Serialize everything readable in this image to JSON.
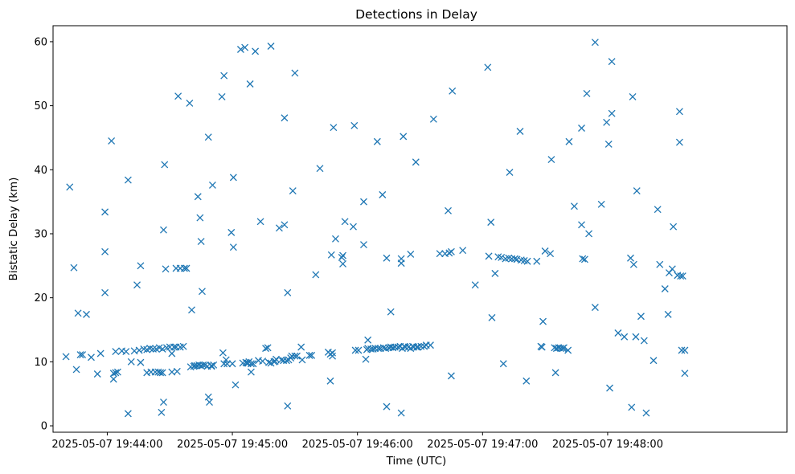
{
  "chart_data": {
    "type": "scatter",
    "title": "Detections in Delay",
    "xlabel": "Time (UTC)",
    "ylabel": "Bistatic Delay (km)",
    "marker": "x",
    "color": "#1f77b4",
    "x_unit": "seconds after 2025-05-07 19:43:00",
    "xlim": [
      34,
      386
    ],
    "ylim": [
      -1,
      62.5
    ],
    "grid": false,
    "x_ticks": [
      {
        "value": 60,
        "label": "2025-05-07 19:44:00"
      },
      {
        "value": 120,
        "label": "2025-05-07 19:45:00"
      },
      {
        "value": 180,
        "label": "2025-05-07 19:46:00"
      },
      {
        "value": 240,
        "label": "2025-05-07 19:47:00"
      },
      {
        "value": 300,
        "label": "2025-05-07 19:48:00"
      }
    ],
    "y_ticks": [
      {
        "value": 0,
        "label": "0"
      },
      {
        "value": 10,
        "label": "10"
      },
      {
        "value": 20,
        "label": "20"
      },
      {
        "value": 30,
        "label": "30"
      },
      {
        "value": 40,
        "label": "40"
      },
      {
        "value": 50,
        "label": "50"
      },
      {
        "value": 60,
        "label": "60"
      }
    ],
    "points": [
      [
        40.2,
        10.8
      ],
      [
        42.0,
        37.3
      ],
      [
        44.0,
        24.7
      ],
      [
        45.2,
        8.8
      ],
      [
        46.0,
        17.6
      ],
      [
        47.1,
        11.1
      ],
      [
        48.1,
        11.1
      ],
      [
        50.0,
        17.4
      ],
      [
        52.3,
        10.7
      ],
      [
        55.3,
        8.1
      ],
      [
        56.8,
        11.3
      ],
      [
        58.9,
        33.4
      ],
      [
        58.9,
        27.2
      ],
      [
        58.9,
        20.8
      ],
      [
        62.0,
        44.5
      ],
      [
        63.0,
        7.3
      ],
      [
        63.0,
        8.2
      ],
      [
        64.0,
        11.6
      ],
      [
        64.0,
        8.3
      ],
      [
        65.0,
        8.4
      ],
      [
        67.0,
        11.7
      ],
      [
        69.0,
        11.6
      ],
      [
        70.0,
        1.9
      ],
      [
        70.0,
        38.4
      ],
      [
        71.5,
        10.0
      ],
      [
        73.0,
        11.7
      ],
      [
        74.3,
        22.0
      ],
      [
        75.3,
        11.8
      ],
      [
        76.0,
        25.0
      ],
      [
        76.0,
        9.9
      ],
      [
        77.5,
        12.0
      ],
      [
        79.0,
        11.9
      ],
      [
        79.0,
        8.3
      ],
      [
        80.5,
        12.1
      ],
      [
        81.0,
        8.4
      ],
      [
        82.0,
        12.0
      ],
      [
        83.0,
        8.4
      ],
      [
        83.5,
        12.0
      ],
      [
        84.5,
        8.4
      ],
      [
        85.0,
        12.2
      ],
      [
        85.5,
        8.3
      ],
      [
        86.0,
        2.1
      ],
      [
        86.5,
        12.0
      ],
      [
        86.5,
        8.3
      ],
      [
        87.0,
        3.7
      ],
      [
        87.0,
        30.6
      ],
      [
        87.5,
        40.8
      ],
      [
        88.0,
        24.5
      ],
      [
        88.5,
        12.2
      ],
      [
        90.0,
        12.3
      ],
      [
        91.0,
        11.3
      ],
      [
        91.0,
        8.4
      ],
      [
        92.0,
        12.3
      ],
      [
        93.0,
        24.6
      ],
      [
        93.0,
        12.3
      ],
      [
        93.5,
        8.5
      ],
      [
        94.0,
        51.5
      ],
      [
        95.0,
        12.3
      ],
      [
        95.0,
        24.6
      ],
      [
        96.5,
        12.4
      ],
      [
        97.0,
        24.6
      ],
      [
        98.0,
        24.6
      ],
      [
        99.5,
        50.4
      ],
      [
        100.0,
        9.2
      ],
      [
        100.5,
        18.1
      ],
      [
        101.5,
        9.3
      ],
      [
        102.0,
        9.4
      ],
      [
        103.0,
        9.4
      ],
      [
        103.5,
        35.8
      ],
      [
        104.0,
        9.5
      ],
      [
        104.5,
        32.5
      ],
      [
        105.0,
        28.8
      ],
      [
        105.0,
        9.4
      ],
      [
        105.5,
        21.0
      ],
      [
        106.0,
        9.5
      ],
      [
        107.0,
        9.5
      ],
      [
        108.0,
        9.3
      ],
      [
        108.5,
        45.1
      ],
      [
        108.5,
        4.5
      ],
      [
        109.0,
        3.7
      ],
      [
        110.0,
        9.3
      ],
      [
        110.0,
        9.4
      ],
      [
        110.5,
        37.6
      ],
      [
        111.0,
        9.5
      ],
      [
        115.0,
        51.4
      ],
      [
        115.5,
        11.4
      ],
      [
        116.0,
        54.7
      ],
      [
        116.0,
        9.7
      ],
      [
        117.0,
        10.3
      ],
      [
        117.5,
        9.7
      ],
      [
        119.5,
        30.2
      ],
      [
        120.0,
        9.7
      ],
      [
        120.5,
        27.9
      ],
      [
        120.5,
        38.8
      ],
      [
        121.5,
        6.4
      ],
      [
        124.0,
        58.8
      ],
      [
        125.0,
        9.8
      ],
      [
        126.0,
        59.1
      ],
      [
        126.5,
        9.9
      ],
      [
        127.0,
        9.8
      ],
      [
        127.5,
        9.8
      ],
      [
        128.0,
        10.0
      ],
      [
        128.5,
        53.4
      ],
      [
        129.0,
        9.7
      ],
      [
        129.0,
        8.4
      ],
      [
        130.0,
        9.7
      ],
      [
        131.0,
        58.5
      ],
      [
        132.5,
        10.2
      ],
      [
        133.5,
        31.9
      ],
      [
        134.5,
        10.1
      ],
      [
        136.0,
        12.1
      ],
      [
        137.0,
        12.2
      ],
      [
        137.5,
        9.9
      ],
      [
        138.5,
        59.3
      ],
      [
        138.5,
        9.8
      ],
      [
        140.0,
        10.0
      ],
      [
        140.5,
        10.1
      ],
      [
        141.0,
        10.4
      ],
      [
        142.5,
        30.9
      ],
      [
        143.5,
        10.3
      ],
      [
        144.5,
        10.2
      ],
      [
        145.0,
        48.1
      ],
      [
        145.0,
        31.4
      ],
      [
        146.0,
        10.2
      ],
      [
        146.5,
        20.8
      ],
      [
        146.5,
        3.1
      ],
      [
        147.0,
        10.3
      ],
      [
        148.0,
        10.6
      ],
      [
        148.5,
        10.9
      ],
      [
        149.0,
        36.7
      ],
      [
        150.0,
        10.9
      ],
      [
        150.0,
        55.1
      ],
      [
        151.0,
        10.9
      ],
      [
        153.0,
        12.3
      ],
      [
        153.5,
        10.3
      ],
      [
        157.0,
        11.0
      ],
      [
        158.0,
        11.0
      ],
      [
        160.0,
        23.6
      ],
      [
        162.0,
        40.2
      ],
      [
        166.0,
        11.5
      ],
      [
        167.0,
        11.2
      ],
      [
        167.0,
        7.0
      ],
      [
        167.5,
        26.7
      ],
      [
        168.0,
        11.4
      ],
      [
        168.0,
        10.9
      ],
      [
        168.5,
        46.6
      ],
      [
        169.5,
        29.2
      ],
      [
        172.5,
        26.3
      ],
      [
        173.0,
        25.3
      ],
      [
        173.0,
        26.6
      ],
      [
        174.0,
        31.9
      ],
      [
        178.0,
        31.1
      ],
      [
        178.5,
        46.9
      ],
      [
        179.0,
        11.8
      ],
      [
        180.5,
        11.8
      ],
      [
        183.0,
        35.0
      ],
      [
        183.0,
        28.3
      ],
      [
        184.0,
        10.4
      ],
      [
        184.5,
        11.9
      ],
      [
        185.0,
        13.4
      ],
      [
        185.0,
        12.1
      ],
      [
        186.5,
        12.0
      ],
      [
        187.5,
        12.0
      ],
      [
        188.5,
        12.1
      ],
      [
        189.5,
        44.4
      ],
      [
        190.0,
        12.1
      ],
      [
        191.0,
        12.1
      ],
      [
        192.0,
        36.1
      ],
      [
        192.5,
        12.2
      ],
      [
        193.5,
        12.1
      ],
      [
        194.0,
        26.2
      ],
      [
        194.0,
        3.0
      ],
      [
        195.0,
        12.2
      ],
      [
        196.0,
        17.8
      ],
      [
        196.0,
        12.3
      ],
      [
        197.0,
        12.2
      ],
      [
        198.0,
        12.3
      ],
      [
        199.5,
        12.3
      ],
      [
        200.5,
        12.4
      ],
      [
        201.0,
        26.1
      ],
      [
        201.0,
        25.4
      ],
      [
        201.0,
        2.0
      ],
      [
        201.5,
        12.1
      ],
      [
        202.0,
        45.2
      ],
      [
        202.5,
        12.4
      ],
      [
        203.0,
        12.3
      ],
      [
        204.5,
        12.3
      ],
      [
        205.5,
        26.8
      ],
      [
        205.5,
        12.1
      ],
      [
        206.5,
        12.4
      ],
      [
        207.0,
        12.3
      ],
      [
        208.0,
        41.2
      ],
      [
        208.5,
        12.3
      ],
      [
        209.0,
        12.3
      ],
      [
        210.5,
        12.4
      ],
      [
        212.0,
        12.4
      ],
      [
        213.0,
        12.6
      ],
      [
        215.0,
        12.6
      ],
      [
        216.5,
        47.9
      ],
      [
        219.5,
        26.9
      ],
      [
        222.0,
        26.9
      ],
      [
        223.5,
        33.6
      ],
      [
        224.0,
        27.0
      ],
      [
        225.0,
        7.8
      ],
      [
        225.0,
        27.2
      ],
      [
        225.5,
        52.3
      ],
      [
        230.5,
        27.4
      ],
      [
        236.5,
        22.0
      ],
      [
        242.5,
        56.0
      ],
      [
        243.0,
        26.5
      ],
      [
        244.0,
        31.8
      ],
      [
        244.5,
        16.9
      ],
      [
        246.0,
        23.8
      ],
      [
        247.5,
        26.4
      ],
      [
        249.0,
        26.3
      ],
      [
        250.0,
        9.7
      ],
      [
        251.0,
        26.1
      ],
      [
        252.5,
        26.2
      ],
      [
        253.0,
        39.6
      ],
      [
        254.0,
        26.1
      ],
      [
        255.5,
        26.1
      ],
      [
        256.5,
        26.0
      ],
      [
        258.0,
        46.0
      ],
      [
        258.5,
        25.9
      ],
      [
        260.0,
        25.8
      ],
      [
        261.0,
        7.0
      ],
      [
        261.5,
        25.7
      ],
      [
        266.0,
        25.7
      ],
      [
        268.0,
        12.4
      ],
      [
        268.5,
        12.3
      ],
      [
        269.0,
        16.3
      ],
      [
        270.0,
        27.3
      ],
      [
        272.5,
        26.9
      ],
      [
        273.0,
        41.6
      ],
      [
        274.5,
        12.2
      ],
      [
        275.0,
        8.3
      ],
      [
        275.5,
        12.1
      ],
      [
        276.5,
        12.2
      ],
      [
        277.5,
        12.1
      ],
      [
        278.5,
        12.1
      ],
      [
        279.0,
        12.2
      ],
      [
        281.0,
        11.8
      ],
      [
        281.5,
        44.4
      ],
      [
        284.0,
        34.3
      ],
      [
        287.5,
        46.5
      ],
      [
        287.5,
        31.4
      ],
      [
        288.0,
        26.1
      ],
      [
        289.0,
        26.0
      ],
      [
        290.0,
        51.9
      ],
      [
        291.0,
        30.0
      ],
      [
        294.0,
        18.5
      ],
      [
        294.0,
        59.9
      ],
      [
        297.0,
        34.6
      ],
      [
        299.5,
        47.4
      ],
      [
        300.5,
        44.0
      ],
      [
        301.0,
        5.9
      ],
      [
        302.0,
        48.8
      ],
      [
        302.0,
        56.9
      ],
      [
        305.0,
        14.5
      ],
      [
        308.0,
        13.9
      ],
      [
        311.0,
        26.2
      ],
      [
        311.5,
        2.9
      ],
      [
        312.0,
        51.4
      ],
      [
        312.5,
        25.2
      ],
      [
        313.5,
        13.9
      ],
      [
        314.0,
        36.7
      ],
      [
        316.0,
        17.1
      ],
      [
        317.5,
        13.3
      ],
      [
        318.5,
        2.0
      ],
      [
        322.0,
        10.2
      ],
      [
        324.0,
        33.8
      ],
      [
        325.0,
        25.2
      ],
      [
        327.5,
        21.4
      ],
      [
        329.0,
        17.4
      ],
      [
        329.5,
        23.9
      ],
      [
        331.0,
        24.5
      ],
      [
        331.5,
        31.1
      ],
      [
        333.5,
        23.5
      ],
      [
        334.5,
        49.1
      ],
      [
        334.5,
        44.3
      ],
      [
        335.0,
        23.4
      ],
      [
        335.5,
        11.8
      ],
      [
        336.0,
        23.4
      ],
      [
        337.0,
        8.2
      ],
      [
        337.0,
        11.8
      ]
    ]
  }
}
